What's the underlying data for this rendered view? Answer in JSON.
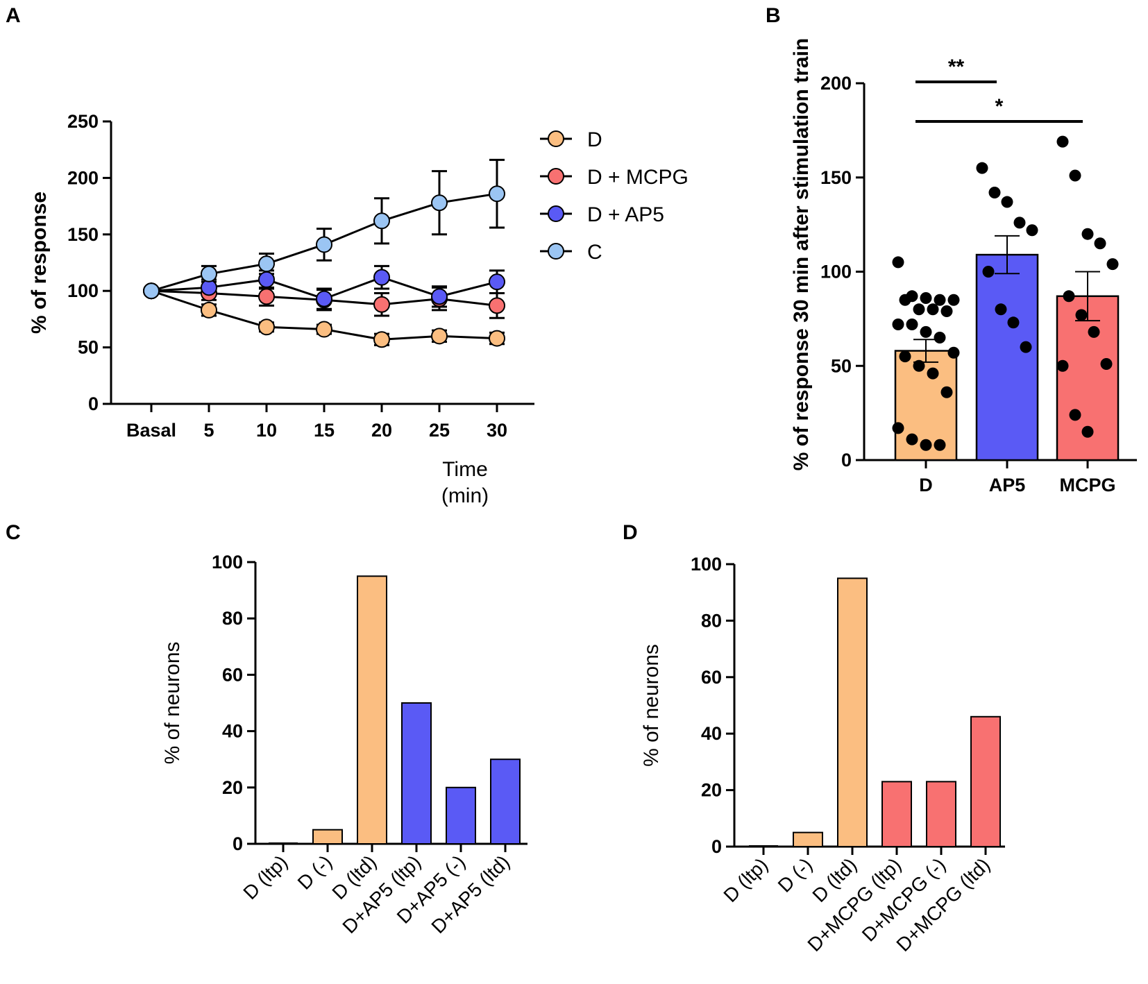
{
  "colors": {
    "D": "#fbbe81",
    "D_MCPG": "#f87171",
    "D_AP5": "#5a5af5",
    "C": "#9bc5f3",
    "axis": "#000000"
  },
  "chart_data": [
    {
      "panel": "A",
      "type": "line",
      "xlabel": [
        "Time",
        "(min)"
      ],
      "ylabel": "% of response",
      "categories": [
        "Basal",
        "5",
        "10",
        "15",
        "20",
        "25",
        "30"
      ],
      "ylim": [
        0,
        250
      ],
      "yticks": [
        0,
        50,
        100,
        150,
        200,
        250
      ],
      "series": [
        {
          "name": "D",
          "color_key": "D",
          "values": [
            100,
            83,
            68,
            66,
            57,
            60,
            58
          ],
          "errors": [
            0,
            5,
            4,
            4,
            5,
            5,
            5
          ]
        },
        {
          "name": "D + MCPG",
          "color_key": "D_MCPG",
          "values": [
            100,
            98,
            95,
            92,
            88,
            93,
            87
          ],
          "errors": [
            0,
            6,
            8,
            9,
            10,
            10,
            11
          ]
        },
        {
          "name": "D + AP5",
          "color_key": "D_AP5",
          "values": [
            100,
            103,
            110,
            93,
            112,
            95,
            108
          ],
          "errors": [
            0,
            7,
            8,
            9,
            10,
            9,
            10
          ]
        },
        {
          "name": "C",
          "color_key": "C",
          "values": [
            100,
            115,
            124,
            141,
            162,
            178,
            186
          ],
          "errors": [
            0,
            7,
            9,
            14,
            20,
            28,
            30
          ]
        }
      ],
      "legend": [
        "D",
        "D + MCPG",
        "D + AP5",
        "C"
      ]
    },
    {
      "panel": "B",
      "type": "bar",
      "ylabel": "% of response 30 min after stimulation train",
      "categories": [
        "D",
        "AP5",
        "MCPG"
      ],
      "values": [
        58,
        109,
        87
      ],
      "sem": [
        6,
        10,
        13
      ],
      "ylim": [
        0,
        200
      ],
      "yticks": [
        0,
        50,
        100,
        150,
        200
      ],
      "points": [
        [
          105,
          87,
          86,
          85,
          85,
          85,
          80,
          80,
          79,
          72,
          72,
          68,
          65,
          57,
          55,
          50,
          46,
          36,
          17,
          11,
          8,
          8
        ],
        [
          155,
          142,
          137,
          126,
          122,
          100,
          80,
          73,
          60
        ],
        [
          169,
          151,
          120,
          115,
          104,
          87,
          77,
          68,
          51,
          50,
          24,
          15
        ]
      ],
      "significance": [
        {
          "label": "**",
          "from": "D",
          "to": "AP5"
        },
        {
          "label": "*",
          "from": "D",
          "to": "MCPG"
        }
      ]
    },
    {
      "panel": "C",
      "type": "bar",
      "ylabel": "% of neurons",
      "categories": [
        "D (ltp)",
        "D (-)",
        "D (ltd)",
        "D+AP5 (ltp)",
        "D+AP5 (-)",
        "D+AP5 (ltd)"
      ],
      "values": [
        0,
        5,
        95,
        50,
        20,
        30
      ],
      "ylim": [
        0,
        100
      ],
      "yticks": [
        0,
        20,
        40,
        60,
        80,
        100
      ]
    },
    {
      "panel": "D",
      "type": "bar",
      "ylabel": "% of neurons",
      "categories": [
        "D (ltp)",
        "D (-)",
        "D (ltd)",
        "D+MCPG (ltp)",
        "D+MCPG (-)",
        "D+MCPG (ltd)"
      ],
      "values": [
        0,
        5,
        95,
        23,
        23,
        46
      ],
      "ylim": [
        0,
        100
      ],
      "yticks": [
        0,
        20,
        40,
        60,
        80,
        100
      ]
    }
  ]
}
